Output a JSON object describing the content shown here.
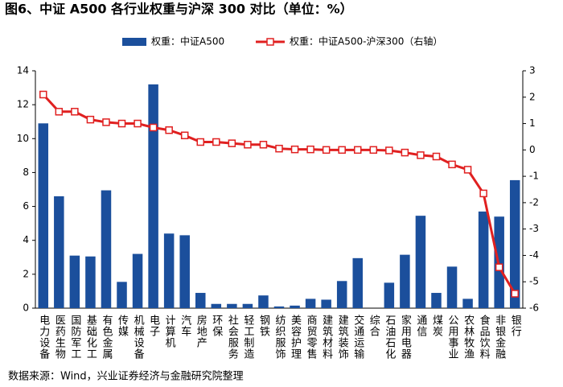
{
  "chart_data": {
    "type": "bar_line",
    "title": "图6、中证 A500 各行业权重与沪深 300 对比（单位：%）",
    "source": "数据来源：Wind，兴业证券经济与金融研究院整理",
    "categories": [
      "电力设备",
      "医药生物",
      "国防军工",
      "基础化工",
      "有色金属",
      "传媒",
      "机械设备",
      "电子",
      "计算机",
      "汽车",
      "房地产",
      "环保",
      "社会服务",
      "轻工制造",
      "钢铁",
      "纺织服饰",
      "美容护理",
      "商贸零售",
      "建筑材料",
      "建筑装饰",
      "交通运输",
      "综合",
      "石油石化",
      "家用电器",
      "通信",
      "煤炭",
      "公用事业",
      "农林牧渔",
      "食品饮料",
      "非银金融",
      "银行"
    ],
    "series": [
      {
        "name": "权重：中证A500",
        "type": "bar",
        "color": "#1b4f9c",
        "values": [
          10.9,
          6.6,
          3.1,
          3.05,
          6.95,
          1.55,
          3.2,
          13.2,
          4.4,
          4.3,
          0.9,
          0.25,
          0.25,
          0.25,
          0.75,
          0.1,
          0.15,
          0.55,
          0.5,
          1.6,
          2.95,
          0,
          1.5,
          3.15,
          5.45,
          0.9,
          2.45,
          0.55,
          5.7,
          5.4,
          7.55
        ]
      },
      {
        "name": "权重：中证A500-沪深300（右轴）",
        "type": "line",
        "axis": "y2",
        "color": "#e02020",
        "values": [
          2.1,
          1.45,
          1.45,
          1.15,
          1.05,
          1.0,
          1.0,
          0.85,
          0.75,
          0.55,
          0.3,
          0.3,
          0.25,
          0.2,
          0.2,
          0.05,
          0.02,
          0.02,
          0.0,
          0.0,
          0.0,
          0.0,
          -0.02,
          -0.1,
          -0.2,
          -0.25,
          -0.55,
          -0.75,
          -1.65,
          -4.45,
          -5.45
        ]
      }
    ],
    "ylim": [
      0,
      14
    ],
    "yticks": [
      0,
      2,
      4,
      6,
      8,
      10,
      12,
      14
    ],
    "y2lim": [
      -6,
      3
    ],
    "y2ticks": [
      -6,
      -5,
      -4,
      -3,
      -2,
      -1,
      0,
      1,
      2,
      3
    ]
  }
}
